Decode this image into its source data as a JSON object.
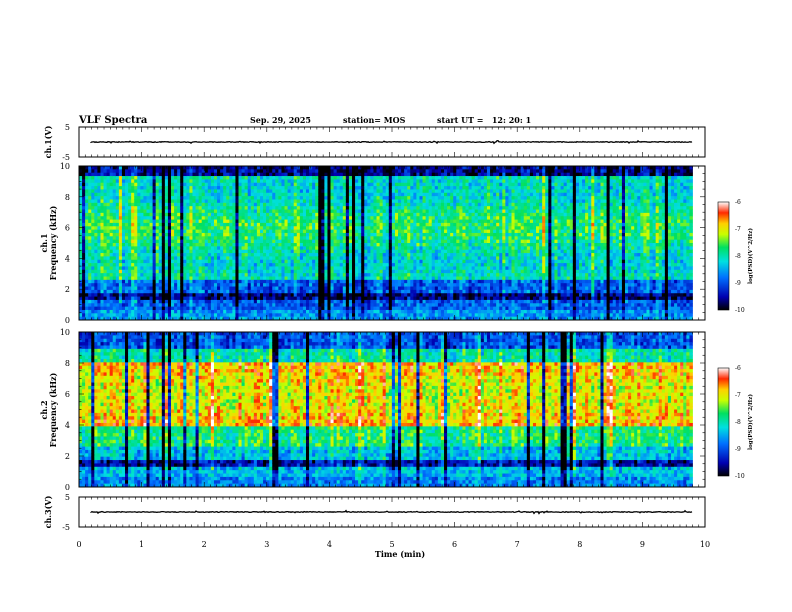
{
  "chart_data": {
    "type": "heatmap",
    "title": "VLF Spectra",
    "header": {
      "date": "Sep. 29, 2025",
      "station": "station= MOS",
      "start_ut": "start UT =   12: 20: 1"
    },
    "xlabel": "Time (min)",
    "xlim": [
      0,
      10
    ],
    "x_ticks": [
      "0",
      "1",
      "2",
      "3",
      "4",
      "5",
      "6",
      "7",
      "8",
      "9",
      "10"
    ],
    "panels": [
      {
        "kind": "waveform",
        "ylabel": "ch.1(V)",
        "ylim": [
          -5,
          5
        ],
        "y_ticks": [
          "5",
          "-5"
        ],
        "trace_level": 0
      },
      {
        "kind": "spectrogram",
        "ylabel_top": "ch.1",
        "ylabel": "Frequency (kHz)",
        "ylim": [
          0,
          10
        ],
        "y_ticks": [
          "0",
          "2",
          "4",
          "6",
          "8",
          "10"
        ],
        "colorbar": {
          "label": "log(PSD)(V^2/Hz)",
          "range": [
            -10,
            -6
          ],
          "ticks": [
            "-6",
            "-7",
            "-8",
            "-9",
            "-10"
          ]
        },
        "dominant_band_khz": [
          2.5,
          9.5
        ]
      },
      {
        "kind": "spectrogram",
        "ylabel_top": "ch.2",
        "ylabel": "Frequency (kHz)",
        "ylim": [
          0,
          10
        ],
        "y_ticks": [
          "0",
          "2",
          "4",
          "6",
          "8",
          "10"
        ],
        "colorbar": {
          "label": "log(PSD)(V^2/Hz)",
          "range": [
            -10,
            -6
          ],
          "ticks": [
            "-6",
            "-7",
            "-8",
            "-9",
            "-10"
          ]
        },
        "dominant_band_khz": [
          3.5,
          8.0
        ]
      },
      {
        "kind": "waveform",
        "ylabel": "ch.3(V)",
        "ylim": [
          -5,
          5
        ],
        "y_ticks": [
          "5",
          "-5"
        ],
        "trace_level": 0
      }
    ]
  }
}
